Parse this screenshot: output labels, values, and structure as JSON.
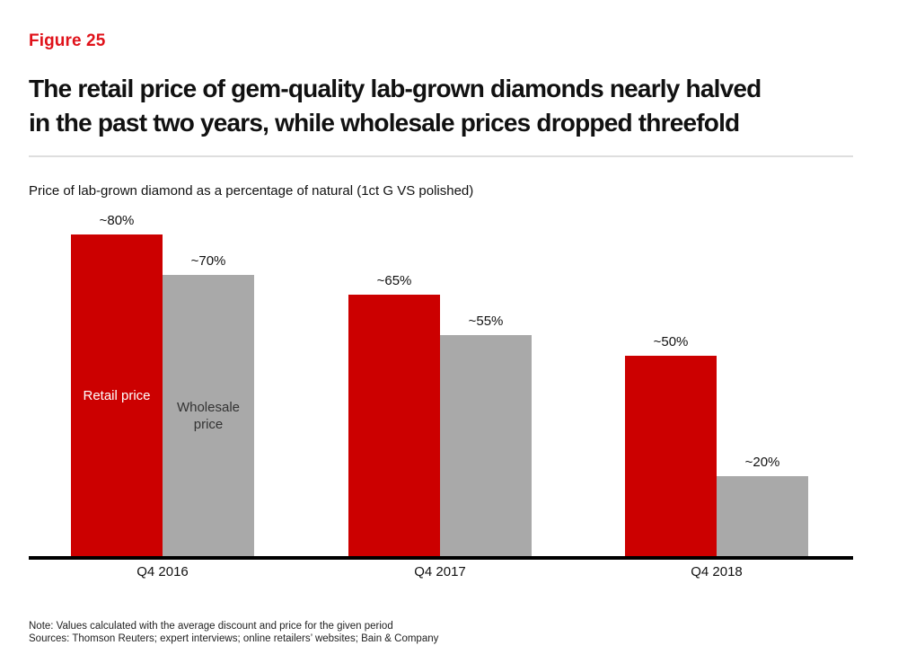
{
  "header": {
    "figure_label": "Figure 25",
    "title_line1": "The retail price of gem-quality lab-grown diamonds nearly halved",
    "title_line2": "in the past two years, while wholesale prices dropped threefold"
  },
  "notes": {
    "line1": "Note: Values calculated with the average discount and price for the given period",
    "line2": "Sources: Thomson Reuters; expert interviews; online retailers’ websites; Bain & Company"
  },
  "colors": {
    "figure_label_red": "#e0121a",
    "retail_bar_red": "#cc0000",
    "wholesale_bar_gray": "#a9a9a9",
    "axis_black": "#000000",
    "divider_gray": "#dedede"
  },
  "chart_data": {
    "type": "bar",
    "title": "Price of lab-grown diamond as a percentage of natural (1ct G VS polished)",
    "categories": [
      "Q4 2016",
      "Q4 2017",
      "Q4 2018"
    ],
    "series": [
      {
        "name": "Retail price",
        "color": "#cc0000",
        "label_color": "#ffffff",
        "values": [
          80,
          65,
          50
        ],
        "data_labels": [
          "~80%",
          "~65%",
          "~50%"
        ]
      },
      {
        "name": "Wholesale price",
        "color": "#a9a9a9",
        "label_color": "#333333",
        "values": [
          70,
          55,
          20
        ],
        "data_labels": [
          "~70%",
          "~55%",
          "~20%"
        ]
      }
    ],
    "unit": "%",
    "ylim": [
      0,
      100
    ],
    "grid": false,
    "y_axis_shown": false,
    "legend": "series names shown inside first category bars"
  }
}
